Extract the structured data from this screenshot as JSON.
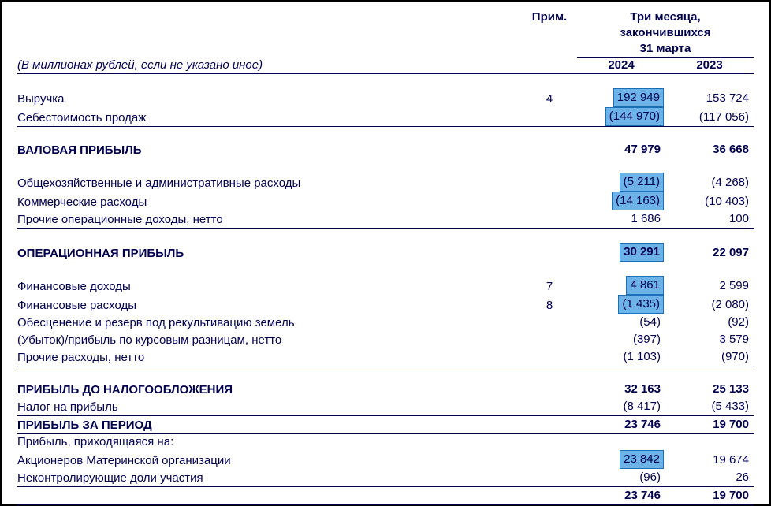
{
  "header": {
    "note": "Прим.",
    "period_line1": "Три месяца,",
    "period_line2": "закончившихся",
    "period_line3": "31 марта",
    "year1": "2024",
    "year2": "2023",
    "units": "(В миллионах рублей, если не указано иное)"
  },
  "highlight": {
    "bg": "#6db3e8",
    "border": "#1b6fb5"
  },
  "text_color": "#00004d",
  "rows": [
    {
      "label": "Выручка",
      "note": "4",
      "y1": "192 949",
      "y2": "153 724",
      "hl1": true
    },
    {
      "label": "Себестоимость продаж",
      "y1": "(144 970)",
      "y2": "(117 056)",
      "hl1": true,
      "ul": true
    },
    {
      "label": "ВАЛОВАЯ ПРИБЫЛЬ",
      "y1": "47 979",
      "y2": "36 668",
      "bold": true,
      "space_before": true
    },
    {
      "label": "Общехозяйственные и административные расходы",
      "y1": "(5 211)",
      "y2": "(4 268)",
      "hl1": true,
      "space_before": true
    },
    {
      "label": "Коммерческие расходы",
      "y1": "(14 163)",
      "y2": "(10 403)",
      "hl1": true
    },
    {
      "label": "Прочие операционные доходы, нетто",
      "y1": "1 686",
      "y2": "100",
      "ul": true
    },
    {
      "label": "ОПЕРАЦИОННАЯ ПРИБЫЛЬ",
      "y1": "30 291",
      "y2": "22 097",
      "bold": true,
      "hl1": true,
      "space_before": true
    },
    {
      "label": "Финансовые доходы",
      "note": "7",
      "y1": "4 861",
      "y2": "2 599",
      "hl1": true,
      "space_before": true
    },
    {
      "label": "Финансовые расходы",
      "note": "8",
      "y1": "(1 435)",
      "y2": "(2 080)",
      "hl1": true
    },
    {
      "label": "Обесценение и резерв под рекультивацию земель",
      "y1": "(54)",
      "y2": "(92)"
    },
    {
      "label": "(Убыток)/прибыль по курсовым разницам, нетто",
      "y1": "(397)",
      "y2": "3 579"
    },
    {
      "label": "Прочие расходы, нетто",
      "y1": "(1 103)",
      "y2": "(970)",
      "ul": true
    },
    {
      "label": "ПРИБЫЛЬ ДО НАЛОГООБЛОЖЕНИЯ",
      "y1": "32 163",
      "y2": "25 133",
      "bold": true,
      "space_before": true
    },
    {
      "label": "Налог на прибыль",
      "y1": "(8 417)",
      "y2": "(5 433)",
      "ul": true
    },
    {
      "label": "ПРИБЫЛЬ ЗА ПЕРИОД",
      "y1": "23 746",
      "y2": "19 700",
      "bold": true,
      "ul": true
    },
    {
      "label": "Прибыль, приходящаяся на:"
    },
    {
      "label": "Акционеров Материнской организации",
      "y1": "23 842",
      "y2": "19 674",
      "hl1": true
    },
    {
      "label": "Неконтролирующие доли участия",
      "y1": "(96)",
      "y2": "26",
      "ul": true
    },
    {
      "label": "",
      "y1": "23 746",
      "y2": "19 700",
      "bold": true,
      "ul": true
    }
  ]
}
